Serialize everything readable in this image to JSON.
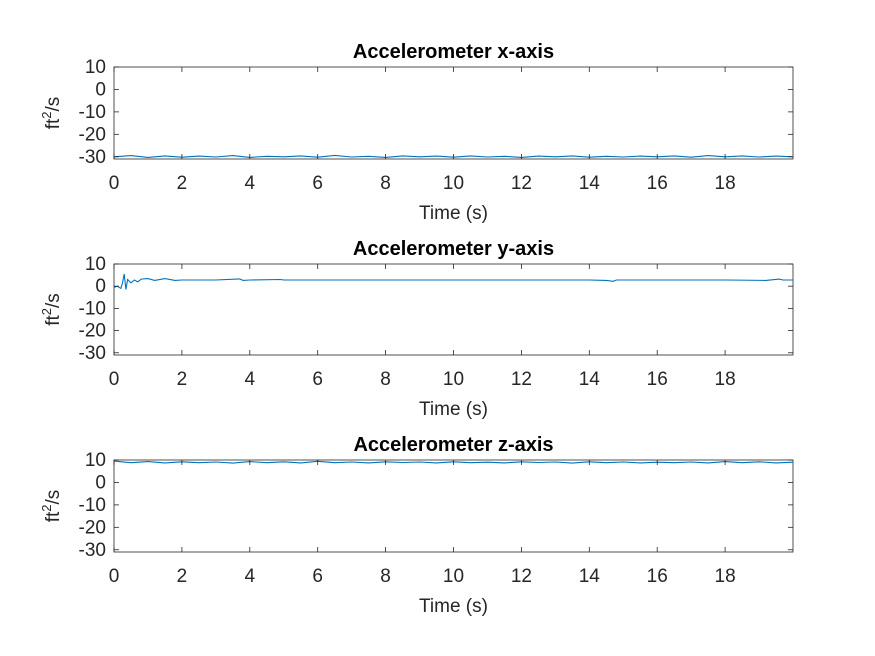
{
  "chart_data": [
    {
      "type": "line",
      "title": "Accelerometer x-axis",
      "xlabel": "Time (s)",
      "ylabel": {
        "base": "ft",
        "sup": "2",
        "rest": "/s"
      },
      "xlim": [
        0,
        20
      ],
      "ylim": [
        -31,
        10
      ],
      "xticks": [
        "0",
        "2",
        "4",
        "6",
        "8",
        "10",
        "12",
        "14",
        "16",
        "18"
      ],
      "xtick_values": [
        0,
        2,
        4,
        6,
        8,
        10,
        12,
        14,
        16,
        18
      ],
      "yticks": [
        "10",
        "0",
        "-10",
        "-20",
        "-30"
      ],
      "ytick_values": [
        10,
        0,
        -10,
        -20,
        -30
      ],
      "grid": false,
      "series": [
        {
          "color": "#0072BD",
          "x": [
            0,
            0.5,
            1.0,
            1.5,
            2.0,
            2.5,
            3.0,
            3.5,
            4.0,
            4.5,
            5.0,
            5.5,
            6.0,
            6.5,
            7.0,
            7.5,
            8.0,
            8.5,
            9.0,
            9.5,
            10.0,
            10.5,
            11.0,
            11.5,
            12.0,
            12.5,
            13.0,
            13.5,
            14.0,
            14.5,
            15.0,
            15.5,
            16.0,
            16.5,
            17.0,
            17.5,
            18.0,
            18.5,
            19.0,
            19.5,
            20.0
          ],
          "y": [
            -30.0,
            -29.5,
            -30.3,
            -29.6,
            -30.2,
            -29.7,
            -30.1,
            -29.5,
            -30.3,
            -29.8,
            -30.0,
            -29.6,
            -30.2,
            -29.4,
            -30.1,
            -29.8,
            -30.3,
            -29.6,
            -30.0,
            -29.7,
            -30.2,
            -29.6,
            -30.1,
            -29.8,
            -30.3,
            -29.7,
            -30.0,
            -29.6,
            -30.2,
            -29.8,
            -30.1,
            -29.7,
            -30.0,
            -29.6,
            -30.2,
            -29.5,
            -30.0,
            -29.6,
            -30.1,
            -29.7,
            -30.0
          ]
        }
      ]
    },
    {
      "type": "line",
      "title": "Accelerometer y-axis",
      "xlabel": "Time (s)",
      "ylabel": {
        "base": "ft",
        "sup": "2",
        "rest": "/s"
      },
      "xlim": [
        0,
        20
      ],
      "ylim": [
        -31,
        10
      ],
      "xticks": [
        "0",
        "2",
        "4",
        "6",
        "8",
        "10",
        "12",
        "14",
        "16",
        "18"
      ],
      "xtick_values": [
        0,
        2,
        4,
        6,
        8,
        10,
        12,
        14,
        16,
        18
      ],
      "yticks": [
        "10",
        "0",
        "-10",
        "-20",
        "-30"
      ],
      "ytick_values": [
        10,
        0,
        -10,
        -20,
        -30
      ],
      "grid": false,
      "series": [
        {
          "color": "#0072BD",
          "x": [
            0,
            0.1,
            0.2,
            0.25,
            0.3,
            0.35,
            0.4,
            0.5,
            0.6,
            0.7,
            0.8,
            1.0,
            1.2,
            1.5,
            1.8,
            2.0,
            3.0,
            3.7,
            3.8,
            4.0,
            4.9,
            5.0,
            6.0,
            8.0,
            10.0,
            12.0,
            14.0,
            14.5,
            14.7,
            14.8,
            15.0,
            16.0,
            18.0,
            19.2,
            19.6,
            19.7,
            20.0
          ],
          "y": [
            -0.5,
            0.0,
            -1.0,
            1.5,
            5.5,
            -1.5,
            3.0,
            1.5,
            2.8,
            2.0,
            3.2,
            3.4,
            2.6,
            3.4,
            2.6,
            2.8,
            2.8,
            3.3,
            2.6,
            2.8,
            3.0,
            2.8,
            2.8,
            2.8,
            2.8,
            2.8,
            2.8,
            2.6,
            2.2,
            2.8,
            2.8,
            2.8,
            2.8,
            2.6,
            3.2,
            2.8,
            2.8
          ]
        }
      ]
    },
    {
      "type": "line",
      "title": "Accelerometer z-axis",
      "xlabel": "Time (s)",
      "ylabel": {
        "base": "ft",
        "sup": "2",
        "rest": "/s"
      },
      "xlim": [
        0,
        20
      ],
      "ylim": [
        -31,
        10
      ],
      "xticks": [
        "0",
        "2",
        "4",
        "6",
        "8",
        "10",
        "12",
        "14",
        "16",
        "18"
      ],
      "xtick_values": [
        0,
        2,
        4,
        6,
        8,
        10,
        12,
        14,
        16,
        18
      ],
      "yticks": [
        "10",
        "0",
        "-10",
        "-20",
        "-30"
      ],
      "ytick_values": [
        10,
        0,
        -10,
        -20,
        -30
      ],
      "grid": false,
      "series": [
        {
          "color": "#0072BD",
          "x": [
            0,
            0.5,
            1.0,
            1.5,
            2.0,
            2.5,
            3.0,
            3.5,
            4.0,
            4.5,
            5.0,
            5.5,
            6.0,
            6.5,
            7.0,
            7.5,
            8.0,
            8.5,
            9.0,
            9.5,
            10.0,
            10.5,
            11.0,
            11.5,
            12.0,
            12.5,
            13.0,
            13.5,
            14.0,
            14.5,
            15.0,
            15.5,
            16.0,
            16.5,
            17.0,
            17.5,
            18.0,
            18.5,
            19.0,
            19.5,
            20.0
          ],
          "y": [
            9.5,
            8.8,
            9.3,
            8.7,
            9.2,
            8.8,
            9.1,
            8.6,
            9.3,
            8.8,
            9.2,
            8.7,
            9.4,
            8.8,
            9.1,
            8.7,
            9.2,
            8.9,
            9.1,
            8.7,
            9.2,
            8.8,
            9.0,
            8.7,
            9.2,
            8.9,
            9.1,
            8.6,
            9.2,
            8.8,
            9.1,
            8.7,
            9.0,
            8.8,
            9.1,
            8.7,
            9.3,
            8.8,
            9.2,
            8.7,
            9.0
          ]
        }
      ]
    }
  ]
}
